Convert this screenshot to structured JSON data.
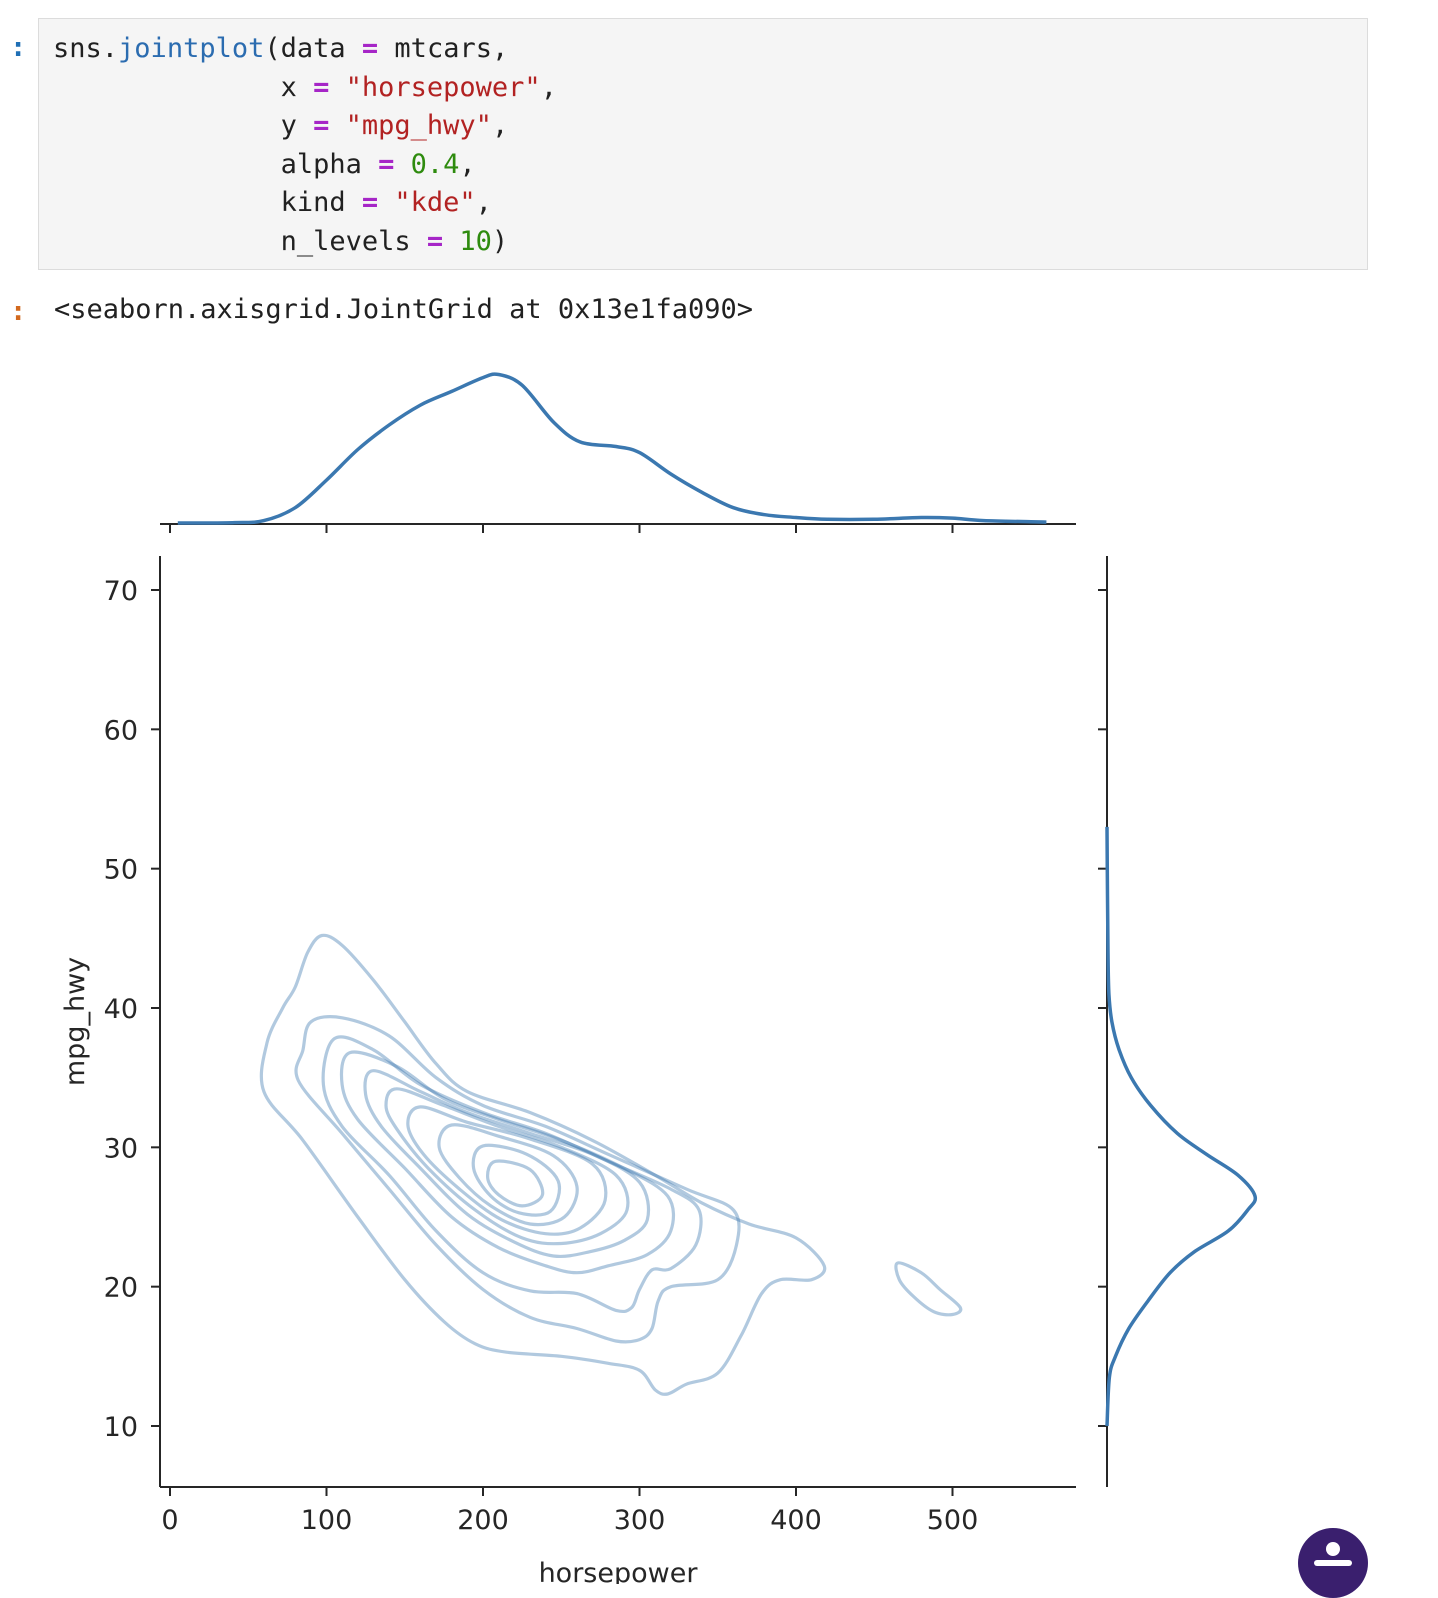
{
  "cell": {
    "in_prompt": ":",
    "out_prompt": ":",
    "code_lines": [
      [
        {
          "t": "sns",
          "c": "tok-name"
        },
        {
          "t": ".",
          "c": "tok-punc"
        },
        {
          "t": "jointplot",
          "c": "tok-func"
        },
        {
          "t": "(data ",
          "c": "tok-name"
        },
        {
          "t": "=",
          "c": "tok-op"
        },
        {
          "t": " mtcars,",
          "c": "tok-name"
        }
      ],
      [
        {
          "t": "              x ",
          "c": "tok-name"
        },
        {
          "t": "=",
          "c": "tok-op"
        },
        {
          "t": " ",
          "c": "tok-name"
        },
        {
          "t": "\"horsepower\"",
          "c": "tok-str"
        },
        {
          "t": ",",
          "c": "tok-punc"
        }
      ],
      [
        {
          "t": "              y ",
          "c": "tok-name"
        },
        {
          "t": "=",
          "c": "tok-op"
        },
        {
          "t": " ",
          "c": "tok-name"
        },
        {
          "t": "\"mpg_hwy\"",
          "c": "tok-str"
        },
        {
          "t": ",",
          "c": "tok-punc"
        }
      ],
      [
        {
          "t": "              alpha ",
          "c": "tok-name"
        },
        {
          "t": "=",
          "c": "tok-op"
        },
        {
          "t": " ",
          "c": "tok-name"
        },
        {
          "t": "0.4",
          "c": "tok-num"
        },
        {
          "t": ",",
          "c": "tok-punc"
        }
      ],
      [
        {
          "t": "              kind ",
          "c": "tok-name"
        },
        {
          "t": "=",
          "c": "tok-op"
        },
        {
          "t": " ",
          "c": "tok-name"
        },
        {
          "t": "\"kde\"",
          "c": "tok-str"
        },
        {
          "t": ",",
          "c": "tok-punc"
        }
      ],
      [
        {
          "t": "              n_levels ",
          "c": "tok-name"
        },
        {
          "t": "=",
          "c": "tok-op"
        },
        {
          "t": " ",
          "c": "tok-name"
        },
        {
          "t": "10",
          "c": "tok-num"
        },
        {
          "t": ")",
          "c": "tok-punc"
        }
      ]
    ],
    "output_text": "<seaborn.axisgrid.JointGrid at 0x13e1fa090>"
  },
  "chart_data": {
    "type": "kde-jointplot",
    "xlabel": "horsepower",
    "ylabel": "mpg_hwy",
    "xlim": [
      -5,
      570
    ],
    "ylim": [
      5,
      72
    ],
    "xticks": [
      0,
      100,
      200,
      300,
      400,
      500
    ],
    "yticks": [
      10,
      20,
      30,
      40,
      50,
      60,
      70
    ],
    "colors": {
      "line": "#3b78b0",
      "contour": "#3b78b0",
      "axis": "#262626"
    },
    "contour_alpha": 0.4,
    "levels": 10,
    "contours": [
      [
        [
          97,
          45.2
        ],
        [
          110,
          44.5
        ],
        [
          130,
          42
        ],
        [
          150,
          39
        ],
        [
          170,
          36
        ],
        [
          190,
          34
        ],
        [
          230,
          32.5
        ],
        [
          270,
          30.5
        ],
        [
          310,
          28
        ],
        [
          340,
          26
        ],
        [
          370,
          24.5
        ],
        [
          400,
          23.5
        ],
        [
          418,
          21.5
        ],
        [
          410,
          20.5
        ],
        [
          390,
          20.5
        ],
        [
          378,
          19.5
        ],
        [
          365,
          16.5
        ],
        [
          350,
          13.8
        ],
        [
          330,
          13
        ],
        [
          318,
          12.3
        ],
        [
          310,
          12.6
        ],
        [
          300,
          14
        ],
        [
          280,
          14.5
        ],
        [
          250,
          15
        ],
        [
          215,
          15.3
        ],
        [
          195,
          15.9
        ],
        [
          175,
          17.5
        ],
        [
          150,
          20.5
        ],
        [
          120,
          25
        ],
        [
          85,
          30.5
        ],
        [
          60,
          34
        ],
        [
          62,
          37.5
        ],
        [
          72,
          40
        ],
        [
          80,
          41.5
        ],
        [
          88,
          44
        ]
      ],
      [
        [
          465,
          21.7
        ],
        [
          480,
          21
        ],
        [
          492,
          19.8
        ],
        [
          505,
          18.5
        ],
        [
          500,
          18
        ],
        [
          488,
          18.2
        ],
        [
          475,
          19.3
        ],
        [
          466,
          20.5
        ]
      ],
      [
        [
          90,
          39
        ],
        [
          110,
          39.3
        ],
        [
          140,
          38
        ],
        [
          170,
          35
        ],
        [
          200,
          33
        ],
        [
          240,
          31.5
        ],
        [
          280,
          29.5
        ],
        [
          330,
          27
        ],
        [
          360,
          25.5
        ],
        [
          362,
          23
        ],
        [
          350,
          20.5
        ],
        [
          320,
          20
        ],
        [
          312,
          19
        ],
        [
          308,
          17
        ],
        [
          300,
          16.2
        ],
        [
          285,
          16.1
        ],
        [
          260,
          17
        ],
        [
          230,
          17.8
        ],
        [
          200,
          19.8
        ],
        [
          170,
          23
        ],
        [
          140,
          27
        ],
        [
          110,
          31
        ],
        [
          82,
          34.8
        ],
        [
          85,
          37
        ]
      ],
      [
        [
          105,
          37.8
        ],
        [
          130,
          37
        ],
        [
          160,
          34.5
        ],
        [
          200,
          32.5
        ],
        [
          240,
          31
        ],
        [
          280,
          29
        ],
        [
          320,
          27
        ],
        [
          338,
          25.5
        ],
        [
          336,
          23
        ],
        [
          320,
          21.3
        ],
        [
          308,
          21.2
        ],
        [
          300,
          19.8
        ],
        [
          295,
          18.5
        ],
        [
          285,
          18.3
        ],
        [
          260,
          19.5
        ],
        [
          230,
          19.7
        ],
        [
          200,
          21
        ],
        [
          170,
          24
        ],
        [
          140,
          28
        ],
        [
          110,
          31.5
        ],
        [
          98,
          34.5
        ]
      ],
      [
        [
          115,
          36.8
        ],
        [
          145,
          35.8
        ],
        [
          175,
          33.5
        ],
        [
          210,
          32
        ],
        [
          250,
          30.5
        ],
        [
          290,
          28.5
        ],
        [
          318,
          26.5
        ],
        [
          320,
          24
        ],
        [
          305,
          22.3
        ],
        [
          280,
          21.5
        ],
        [
          260,
          21
        ],
        [
          240,
          21.5
        ],
        [
          210,
          22.8
        ],
        [
          180,
          25
        ],
        [
          150,
          28.5
        ],
        [
          120,
          32
        ],
        [
          110,
          34.5
        ]
      ],
      [
        [
          130,
          35.5
        ],
        [
          160,
          34
        ],
        [
          190,
          32.5
        ],
        [
          230,
          31
        ],
        [
          270,
          29.5
        ],
        [
          300,
          27.5
        ],
        [
          305,
          24.8
        ],
        [
          290,
          23.3
        ],
        [
          268,
          22.5
        ],
        [
          245,
          22.2
        ],
        [
          220,
          23.2
        ],
        [
          190,
          25.2
        ],
        [
          160,
          28.5
        ],
        [
          135,
          31.5
        ],
        [
          125,
          33.8
        ]
      ],
      [
        [
          145,
          34.2
        ],
        [
          175,
          33
        ],
        [
          210,
          31.5
        ],
        [
          250,
          30
        ],
        [
          285,
          28
        ],
        [
          292,
          25.5
        ],
        [
          275,
          23.8
        ],
        [
          250,
          23.1
        ],
        [
          225,
          23.5
        ],
        [
          195,
          25.5
        ],
        [
          165,
          28.5
        ],
        [
          145,
          31.3
        ],
        [
          138,
          33
        ]
      ],
      [
        [
          160,
          32.9
        ],
        [
          190,
          31.8
        ],
        [
          230,
          30.6
        ],
        [
          270,
          28.8
        ],
        [
          278,
          26.2
        ],
        [
          262,
          24.2
        ],
        [
          240,
          23.8
        ],
        [
          212,
          24.8
        ],
        [
          185,
          27
        ],
        [
          162,
          29.5
        ],
        [
          152,
          31.6
        ]
      ],
      [
        [
          180,
          31.6
        ],
        [
          210,
          30.8
        ],
        [
          245,
          29.4
        ],
        [
          260,
          27.2
        ],
        [
          252,
          25
        ],
        [
          230,
          24.5
        ],
        [
          205,
          25.8
        ],
        [
          185,
          27.8
        ],
        [
          172,
          30
        ]
      ],
      [
        [
          200,
          30.1
        ],
        [
          228,
          29.5
        ],
        [
          248,
          27.6
        ],
        [
          243,
          25.4
        ],
        [
          223,
          25.3
        ],
        [
          205,
          26.5
        ],
        [
          194,
          28.5
        ]
      ],
      [
        [
          208,
          29
        ],
        [
          230,
          28.4
        ],
        [
          238,
          26.6
        ],
        [
          225,
          25.8
        ],
        [
          210,
          26.6
        ],
        [
          203,
          27.8
        ]
      ]
    ],
    "x_marginal": [
      [
        5,
        0.0
      ],
      [
        40,
        0.1
      ],
      [
        60,
        0.8
      ],
      [
        80,
        5
      ],
      [
        100,
        14
      ],
      [
        120,
        24
      ],
      [
        140,
        32
      ],
      [
        160,
        38.5
      ],
      [
        180,
        43
      ],
      [
        200,
        47.5
      ],
      [
        210,
        48.5
      ],
      [
        225,
        45
      ],
      [
        245,
        33
      ],
      [
        262,
        26.5
      ],
      [
        285,
        25
      ],
      [
        300,
        23
      ],
      [
        320,
        16
      ],
      [
        340,
        10
      ],
      [
        360,
        5
      ],
      [
        380,
        2.7
      ],
      [
        400,
        1.8
      ],
      [
        420,
        1.2
      ],
      [
        450,
        1.2
      ],
      [
        480,
        1.8
      ],
      [
        500,
        1.6
      ],
      [
        520,
        0.8
      ],
      [
        560,
        0.3
      ]
    ],
    "y_marginal": [
      [
        10.0,
        0
      ],
      [
        13.5,
        1
      ],
      [
        15,
        3.5
      ],
      [
        17,
        9
      ],
      [
        19,
        17
      ],
      [
        21,
        26
      ],
      [
        22.5,
        36
      ],
      [
        24,
        50
      ],
      [
        25.5,
        58
      ],
      [
        26.5,
        61
      ],
      [
        28,
        54
      ],
      [
        29.5,
        41
      ],
      [
        31,
        29
      ],
      [
        33,
        18
      ],
      [
        35,
        10
      ],
      [
        37,
        5
      ],
      [
        39,
        2
      ],
      [
        41,
        0.8
      ],
      [
        44,
        0.4
      ],
      [
        48,
        0.2
      ],
      [
        53,
        0
      ]
    ]
  }
}
